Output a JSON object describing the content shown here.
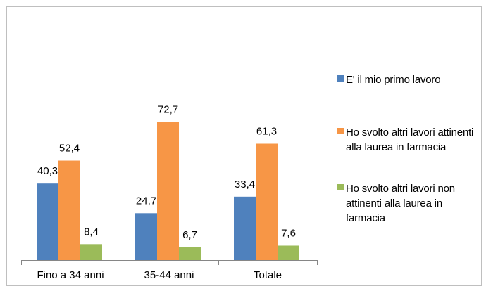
{
  "chart_data": {
    "type": "bar",
    "categories": [
      "Fino a 34 anni",
      "35-44 anni",
      "Totale"
    ],
    "series": [
      {
        "name": "E' il mio primo lavoro",
        "color": "#4f81bd",
        "values": [
          40.3,
          24.7,
          33.4
        ],
        "labels": [
          "40,3",
          "24,7",
          "33,4"
        ]
      },
      {
        "name": "Ho svolto altri lavori attinenti alla laurea in farmacia",
        "color": "#f79646",
        "values": [
          52.4,
          72.7,
          61.3
        ],
        "labels": [
          "52,4",
          "72,7",
          "61,3"
        ]
      },
      {
        "name": "Ho svolto altri lavori non attinenti alla laurea in farmacia",
        "color": "#9bbb59",
        "values": [
          8.4,
          6.7,
          7.6
        ],
        "labels": [
          "8,4",
          "6,7",
          "7,6"
        ]
      }
    ],
    "ylim": [
      0,
      100
    ],
    "grid": false,
    "legend_position": "right"
  }
}
